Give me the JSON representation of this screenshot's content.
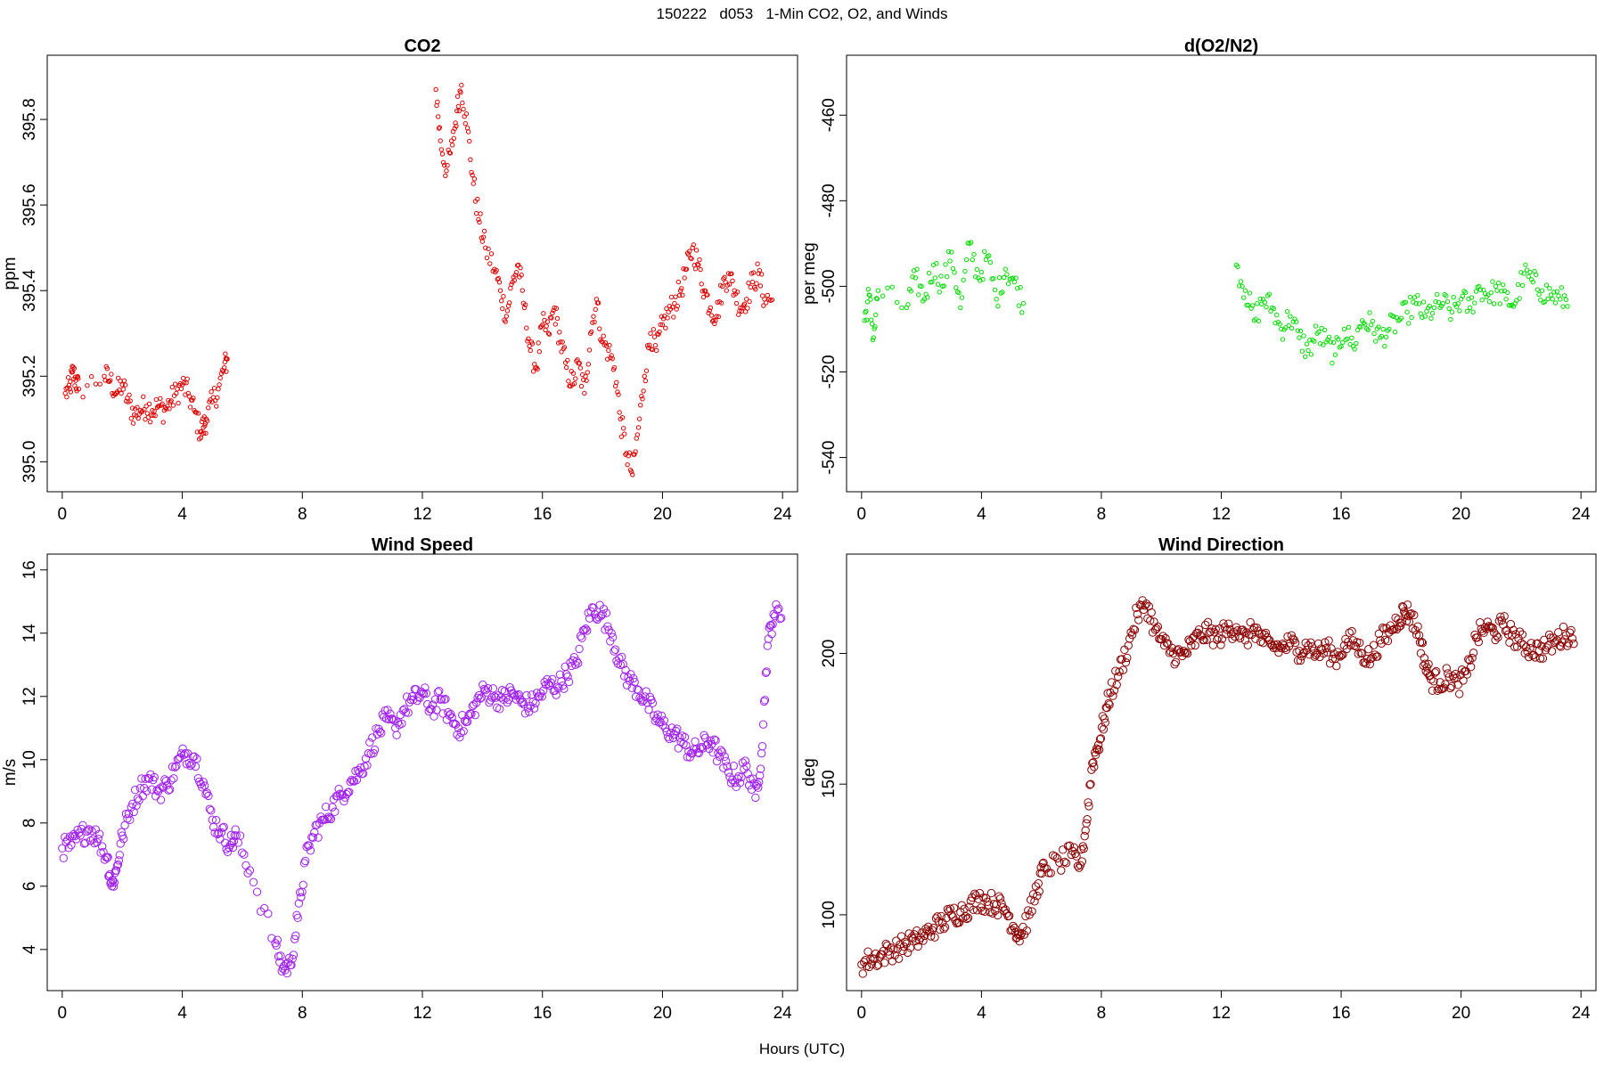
{
  "figure": {
    "title": "150222   d053   1-Min CO2, O2, and Winds",
    "xlabel": "Hours (UTC)"
  },
  "chart_data": [
    {
      "type": "scatter",
      "title": "CO2",
      "xlabel": "",
      "ylabel": "ppm",
      "xlim": [
        -0.5,
        24.5
      ],
      "ylim": [
        394.93,
        395.95
      ],
      "xticks": [
        "0",
        "4",
        "8",
        "12",
        "16",
        "20",
        "24"
      ],
      "yticks": [
        "395.0",
        "395.2",
        "395.4",
        "395.6",
        "395.8"
      ],
      "grid": false,
      "marker": "small-open-circle",
      "color": "#e00000",
      "series": [
        {
          "x": [
            0.1,
            0.25,
            0.35,
            0.45,
            0.55,
            1.4,
            1.6,
            1.8,
            2.0,
            2.2,
            2.4,
            2.6,
            2.8,
            3.0,
            3.2,
            3.4,
            3.6,
            3.8,
            4.0,
            4.2,
            4.4,
            4.6,
            4.7,
            4.8,
            5.0,
            5.2,
            5.4,
            5.5,
            12.45,
            12.6,
            12.8,
            13.0,
            13.15,
            13.3,
            13.5,
            13.7,
            13.9,
            14.1,
            14.4,
            14.6,
            14.8,
            15.0,
            15.2,
            15.4,
            15.6,
            15.8,
            16.0,
            16.2,
            16.4,
            16.6,
            16.8,
            17.0,
            17.2,
            17.4,
            17.6,
            17.8,
            18.0,
            18.2,
            18.4,
            18.6,
            18.8,
            19.0,
            19.2,
            19.4,
            19.6,
            19.8,
            20.0,
            20.2,
            20.4,
            20.6,
            20.8,
            21.0,
            21.2,
            21.4,
            21.6,
            21.8,
            22.0,
            22.2,
            22.4,
            22.6,
            22.8,
            23.0,
            23.2,
            23.4
          ],
          "y": [
            395.16,
            395.17,
            395.21,
            395.19,
            395.17,
            395.2,
            395.19,
            395.16,
            395.18,
            395.14,
            395.11,
            395.12,
            395.13,
            395.12,
            395.13,
            395.12,
            395.14,
            395.16,
            395.18,
            395.16,
            395.12,
            395.07,
            395.08,
            395.1,
            395.14,
            395.17,
            395.22,
            395.24,
            395.87,
            395.75,
            395.68,
            395.74,
            395.82,
            395.88,
            395.78,
            395.65,
            395.56,
            395.5,
            395.45,
            395.4,
            395.34,
            395.42,
            395.46,
            395.36,
            395.26,
            395.22,
            395.32,
            395.3,
            395.36,
            395.28,
            395.22,
            395.18,
            395.23,
            395.16,
            395.3,
            395.38,
            395.28,
            395.26,
            395.22,
            395.1,
            395.02,
            394.97,
            395.08,
            395.2,
            395.3,
            395.26,
            395.32,
            395.35,
            395.37,
            395.4,
            395.45,
            395.5,
            395.46,
            395.4,
            395.36,
            395.34,
            395.41,
            395.44,
            395.4,
            395.36,
            395.38,
            395.42,
            395.44,
            395.38
          ]
        }
      ]
    },
    {
      "type": "scatter",
      "title": "d(O2/N2)",
      "xlabel": "",
      "ylabel": "per meg",
      "xlim": [
        -0.5,
        24.5
      ],
      "ylim": [
        -548,
        -446
      ],
      "xticks": [
        "0",
        "4",
        "8",
        "12",
        "16",
        "20",
        "24"
      ],
      "yticks": [
        "-540",
        "-520",
        "-500",
        "-480",
        "-460"
      ],
      "grid": false,
      "marker": "small-open-circle",
      "color": "#00dd00",
      "series": [
        {
          "x": [
            0.1,
            0.25,
            0.4,
            0.55,
            1.5,
            1.8,
            2.1,
            2.4,
            2.7,
            3.0,
            3.3,
            3.6,
            3.9,
            4.2,
            4.5,
            4.8,
            5.1,
            5.4,
            12.5,
            12.8,
            13.1,
            13.4,
            13.7,
            14.0,
            14.3,
            14.6,
            14.9,
            15.2,
            15.5,
            15.8,
            16.1,
            16.4,
            16.7,
            17.0,
            17.3,
            17.6,
            17.9,
            18.2,
            18.5,
            18.8,
            19.1,
            19.4,
            19.7,
            20.0,
            20.3,
            20.6,
            20.9,
            21.2,
            21.5,
            21.8,
            22.1,
            22.4,
            22.7,
            23.0,
            23.3
          ],
          "y": [
            -508,
            -502,
            -512,
            -501,
            -505,
            -498,
            -503,
            -495,
            -500,
            -492,
            -505,
            -490,
            -498,
            -493,
            -503,
            -496,
            -499,
            -504,
            -495,
            -501,
            -508,
            -503,
            -505,
            -510,
            -507,
            -512,
            -515,
            -511,
            -513,
            -516,
            -510,
            -514,
            -508,
            -509,
            -512,
            -510,
            -508,
            -506,
            -504,
            -507,
            -505,
            -504,
            -506,
            -503,
            -505,
            -500,
            -502,
            -501,
            -503,
            -504,
            -497,
            -499,
            -501,
            -502,
            -503
          ]
        }
      ]
    },
    {
      "type": "scatter",
      "title": "Wind Speed",
      "xlabel": "",
      "ylabel": "m/s",
      "xlim": [
        -0.5,
        24.5
      ],
      "ylim": [
        2.7,
        16.5
      ],
      "xticks": [
        "0",
        "4",
        "8",
        "12",
        "16",
        "20",
        "24"
      ],
      "yticks": [
        "4",
        "6",
        "8",
        "10",
        "12",
        "14",
        "16"
      ],
      "grid": false,
      "marker": "open-circle",
      "color": "#a020f0",
      "series": [
        {
          "x": [
            0.0,
            0.3,
            0.6,
            0.9,
            1.2,
            1.5,
            1.65,
            1.8,
            2.0,
            2.3,
            2.6,
            2.9,
            3.2,
            3.5,
            3.8,
            4.1,
            4.4,
            4.7,
            5.0,
            5.3,
            5.6,
            5.8,
            6.25,
            7.1,
            7.35,
            7.6,
            7.85,
            8.1,
            8.4,
            8.7,
            9.0,
            9.3,
            9.6,
            9.9,
            10.2,
            10.5,
            10.8,
            11.1,
            11.4,
            11.7,
            12.0,
            12.3,
            12.6,
            12.9,
            13.2,
            13.5,
            13.8,
            14.1,
            14.4,
            14.7,
            15.0,
            15.3,
            15.6,
            15.9,
            16.2,
            16.5,
            16.8,
            17.1,
            17.4,
            17.7,
            18.0,
            18.3,
            18.6,
            18.9,
            19.2,
            19.5,
            19.8,
            20.1,
            20.4,
            20.7,
            21.0,
            21.3,
            21.6,
            21.9,
            22.2,
            22.5,
            22.8,
            23.1,
            23.3,
            23.5,
            23.7
          ],
          "y": [
            7.2,
            7.3,
            7.6,
            7.8,
            7.5,
            6.9,
            6.0,
            6.5,
            7.6,
            8.5,
            9.1,
            9.4,
            9.0,
            9.2,
            9.8,
            10.2,
            10.1,
            9.3,
            8.1,
            7.7,
            7.3,
            7.6,
            6.5,
            4.2,
            3.4,
            3.5,
            5.0,
            6.8,
            7.7,
            8.1,
            8.5,
            8.9,
            9.3,
            9.6,
            10.2,
            10.8,
            11.3,
            11.0,
            11.6,
            11.9,
            12.1,
            11.6,
            11.9,
            11.4,
            11.0,
            11.2,
            11.8,
            12.2,
            12.0,
            11.9,
            12.1,
            11.8,
            11.7,
            12.0,
            12.4,
            12.3,
            12.7,
            13.0,
            14.1,
            14.8,
            14.6,
            14.0,
            13.0,
            12.5,
            12.2,
            11.8,
            11.3,
            11.0,
            10.8,
            10.5,
            10.2,
            10.4,
            10.6,
            10.1,
            9.6,
            9.4,
            9.8,
            8.8,
            10.2,
            13.6,
            14.6
          ]
        }
      ]
    },
    {
      "type": "scatter",
      "title": "Wind Direction",
      "xlabel": "",
      "ylabel": "deg",
      "xlim": [
        -0.5,
        24.5
      ],
      "ylim": [
        71,
        238
      ],
      "xticks": [
        "0",
        "4",
        "8",
        "12",
        "16",
        "20",
        "24"
      ],
      "yticks": [
        "100",
        "150",
        "200"
      ],
      "grid": false,
      "marker": "open-circle",
      "color": "#8b0000",
      "series": [
        {
          "x": [
            0.0,
            0.3,
            0.6,
            0.9,
            1.2,
            1.5,
            1.8,
            2.1,
            2.4,
            2.7,
            3.0,
            3.3,
            3.6,
            3.9,
            4.2,
            4.5,
            4.8,
            5.1,
            5.3,
            5.6,
            5.9,
            6.1,
            6.6,
            7.0,
            7.3,
            7.5,
            7.7,
            7.9,
            8.1,
            8.3,
            8.6,
            8.9,
            9.2,
            9.5,
            9.8,
            10.1,
            10.4,
            10.7,
            11.0,
            11.3,
            11.6,
            11.9,
            12.2,
            12.5,
            12.8,
            13.1,
            13.4,
            13.7,
            14.0,
            14.3,
            14.6,
            14.9,
            15.2,
            15.5,
            15.8,
            16.1,
            16.4,
            16.7,
            17.0,
            17.3,
            17.6,
            17.9,
            18.1,
            18.3,
            18.6,
            18.8,
            19.0,
            19.3,
            19.6,
            19.9,
            20.2,
            20.5,
            20.8,
            21.1,
            21.4,
            21.7,
            22.0,
            22.3,
            22.6,
            22.9,
            23.2,
            23.5
          ],
          "y": [
            81,
            83,
            84,
            86,
            87,
            89,
            90,
            92,
            95,
            97,
            100,
            101,
            103,
            106,
            105,
            104,
            102,
            95,
            92,
            100,
            112,
            118,
            120,
            123,
            119,
            135,
            158,
            165,
            175,
            185,
            193,
            203,
            215,
            219,
            209,
            203,
            200,
            199,
            203,
            207,
            208,
            206,
            209,
            210,
            205,
            210,
            204,
            203,
            202,
            204,
            201,
            203,
            200,
            202,
            198,
            203,
            205,
            200,
            198,
            205,
            208,
            213,
            216,
            215,
            207,
            196,
            190,
            189,
            191,
            188,
            192,
            206,
            210,
            208,
            211,
            207,
            204,
            202,
            201,
            203,
            205,
            207
          ]
        }
      ]
    }
  ]
}
